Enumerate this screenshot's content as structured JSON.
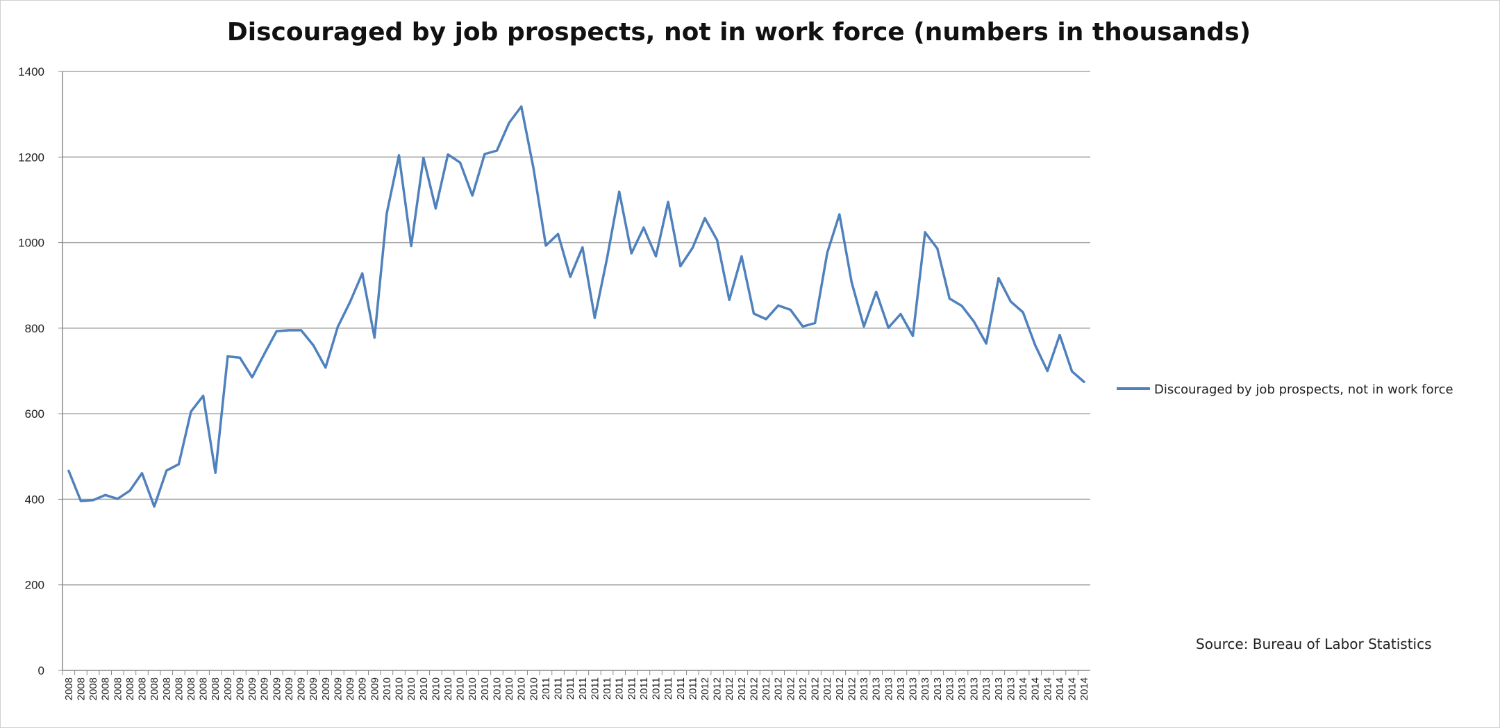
{
  "chart_data": {
    "type": "line",
    "title": "Discouraged by job prospects, not in work force (numbers in thousands)",
    "ylim": [
      0,
      1400
    ],
    "yticks": [
      0,
      200,
      400,
      600,
      800,
      1000,
      1200,
      1400
    ],
    "grid": true,
    "legend_position": "right",
    "source_note": "Source: Bureau of Labor Statistics",
    "series": [
      {
        "name": "Discouraged by job prospects, not in work force",
        "color": "#4f81bd",
        "values": [
          467,
          396,
          398,
          410,
          401,
          420,
          461,
          383,
          467,
          482,
          605,
          642,
          462,
          734,
          731,
          685,
          740,
          793,
          795,
          795,
          760,
          708,
          803,
          861,
          928,
          778,
          1068,
          1204,
          992,
          1198,
          1080,
          1206,
          1187,
          1110,
          1207,
          1215,
          1280,
          1318,
          1173,
          993,
          1020,
          920,
          989,
          824,
          962,
          1119,
          975,
          1035,
          968,
          1095,
          945,
          988,
          1057,
          1006,
          866,
          968,
          834,
          821,
          853,
          843,
          804,
          812,
          976,
          1066,
          907,
          804,
          885,
          801,
          833,
          782,
          1024,
          986,
          869,
          852,
          815,
          764,
          917,
          862,
          837,
          760,
          700,
          784,
          699,
          674
        ],
        "labels": [
          "2008",
          "2008",
          "2008",
          "2008",
          "2008",
          "2008",
          "2008",
          "2008",
          "2008",
          "2008",
          "2008",
          "2008",
          "2008",
          "2009",
          "2009",
          "2009",
          "2009",
          "2009",
          "2009",
          "2009",
          "2009",
          "2009",
          "2009",
          "2009",
          "2009",
          "2009",
          "2010",
          "2010",
          "2010",
          "2010",
          "2010",
          "2010",
          "2010",
          "2010",
          "2010",
          "2010",
          "2010",
          "2010",
          "2010",
          "2011",
          "2011",
          "2011",
          "2011",
          "2011",
          "2011",
          "2011",
          "2011",
          "2011",
          "2011",
          "2011",
          "2011",
          "2011",
          "2012",
          "2012",
          "2012",
          "2012",
          "2012",
          "2012",
          "2012",
          "2012",
          "2012",
          "2012",
          "2012",
          "2012",
          "2012",
          "2013",
          "2013",
          "2013",
          "2013",
          "2013",
          "2013",
          "2013",
          "2013",
          "2013",
          "2013",
          "2013",
          "2013",
          "2013",
          "2014",
          "2014",
          "2014",
          "2014",
          "2014",
          "2014"
        ]
      }
    ]
  }
}
